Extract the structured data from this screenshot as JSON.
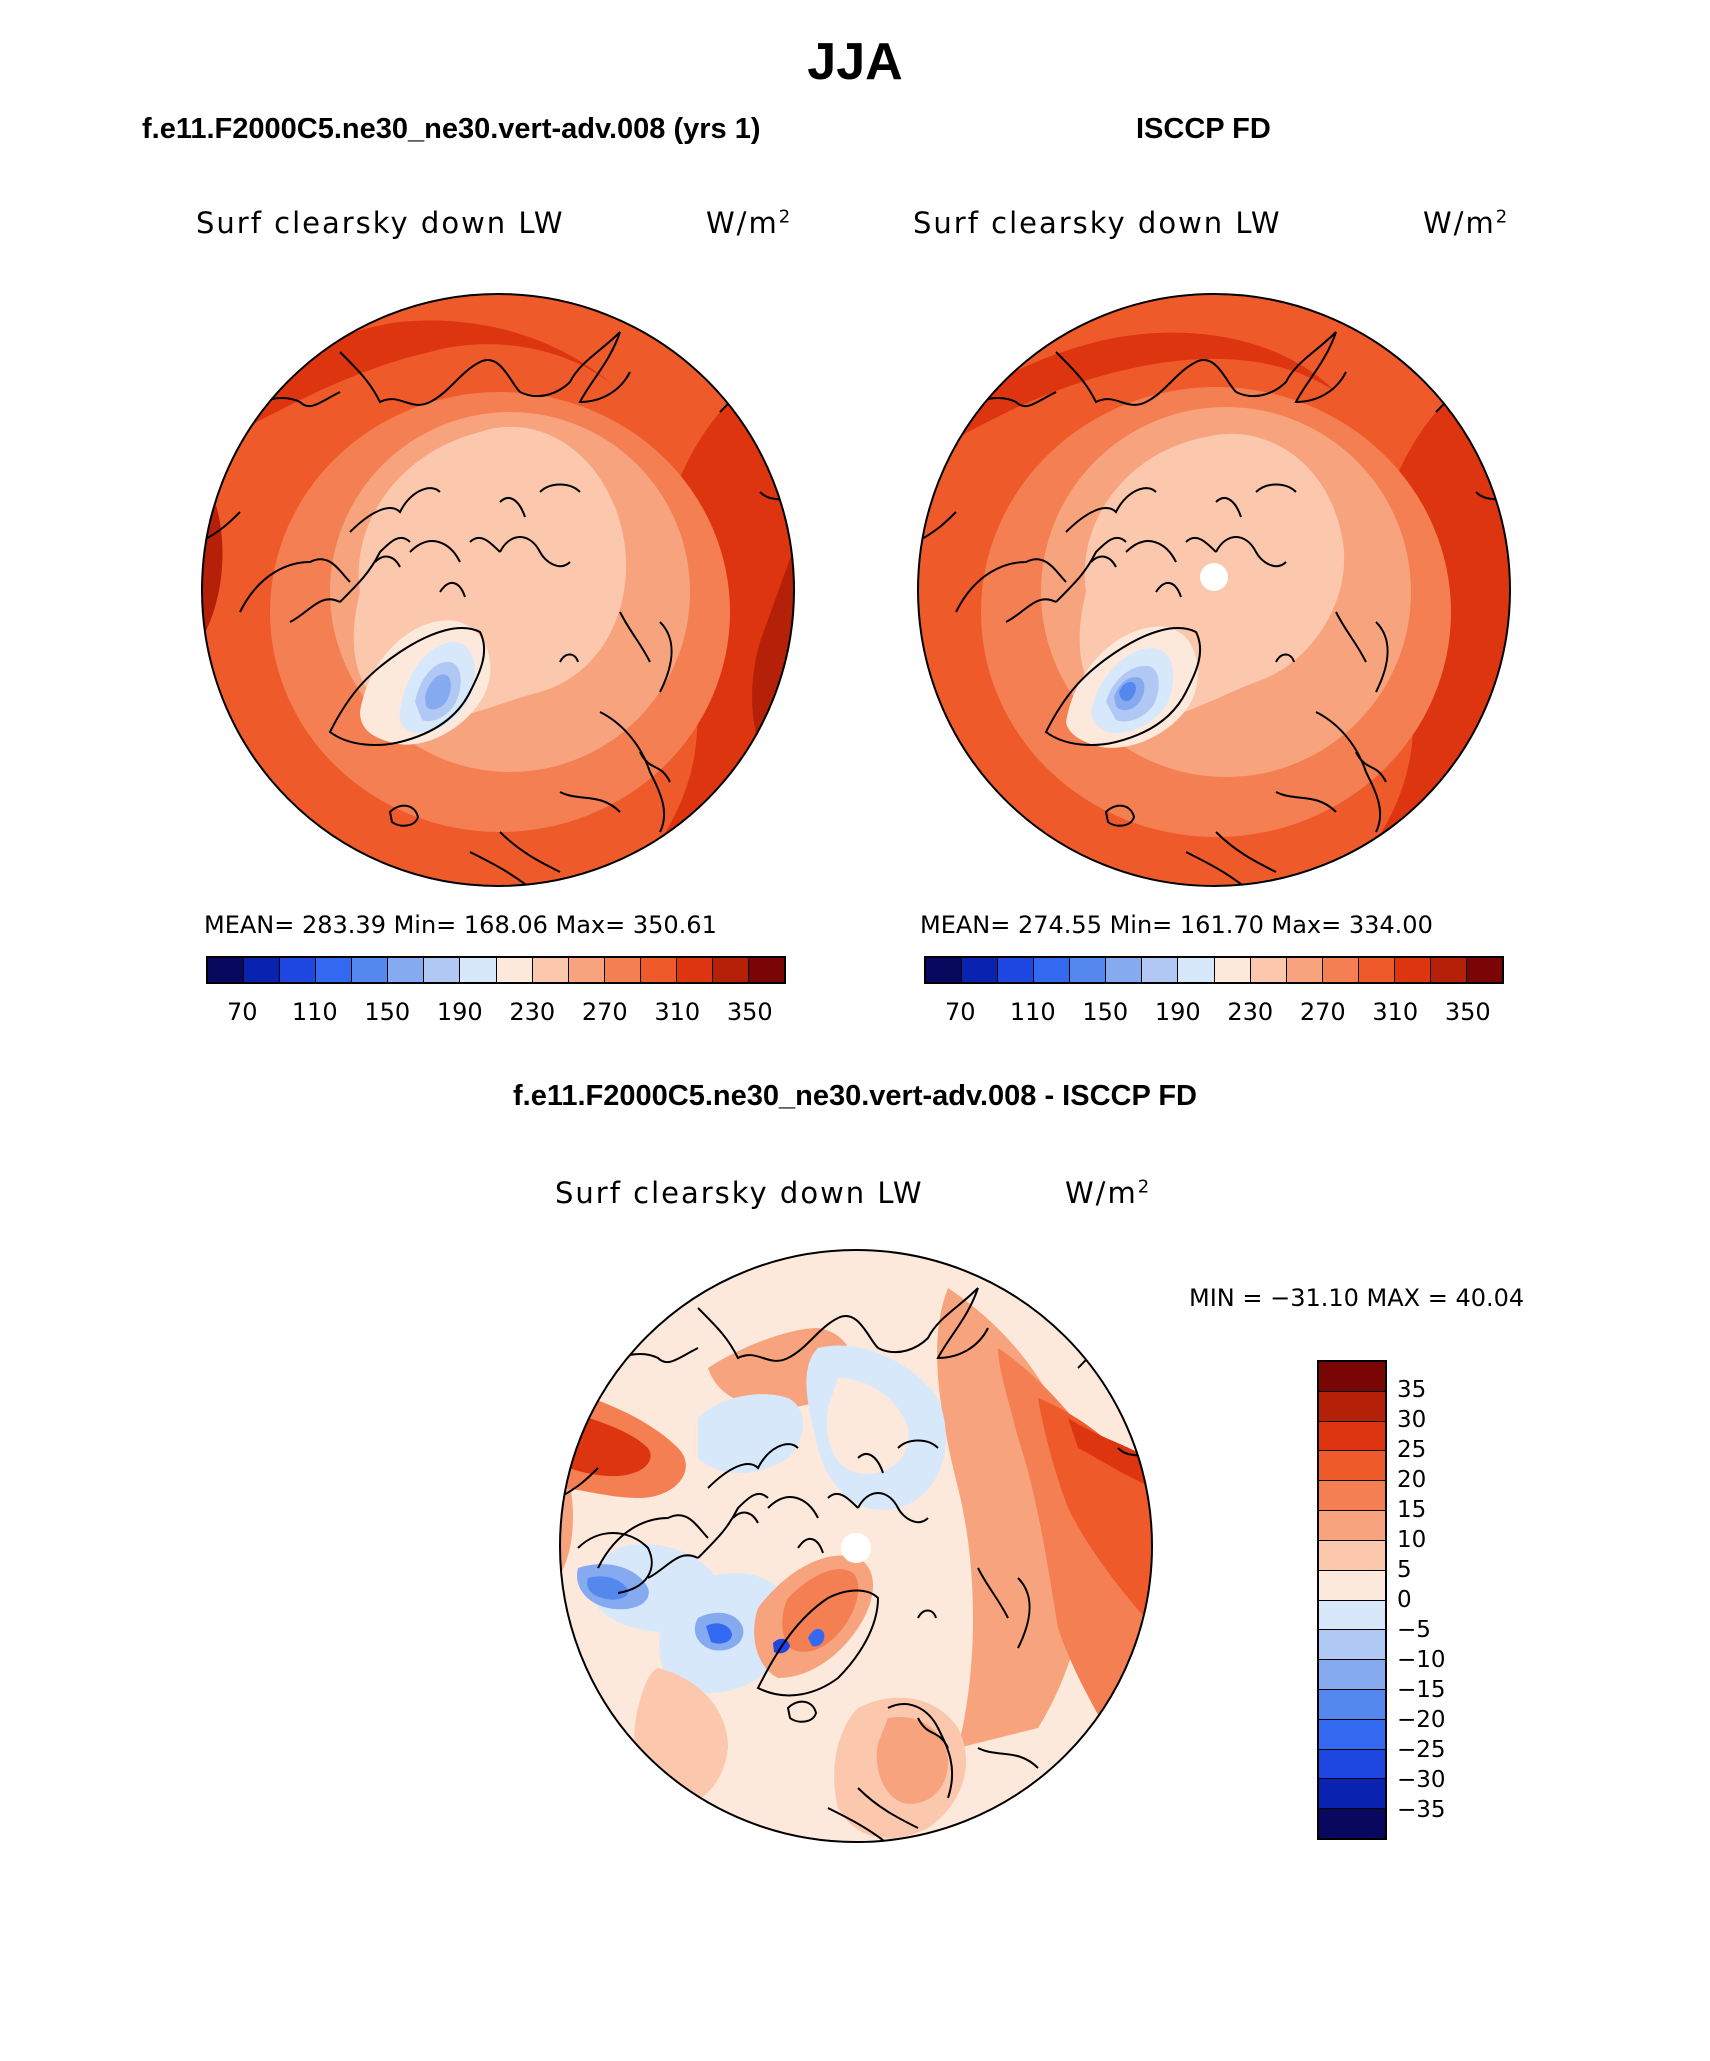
{
  "figure": {
    "title": "JJA",
    "diff_title": "f.e11.F2000C5.ne30_ne30.vert-adv.008 - ISCCP FD"
  },
  "colors": {
    "abs_scale": [
      "#08085e",
      "#0a22b0",
      "#1e46e0",
      "#3368f0",
      "#5588ee",
      "#86aaf0",
      "#b1c8f5",
      "#d8e8fb",
      "#fde9dc",
      "#fbc8ae",
      "#f7a47e",
      "#f47f52",
      "#ef5a2b",
      "#dd3510",
      "#b52008",
      "#7a0505"
    ],
    "diff_scale": [
      "#7a0505",
      "#b52008",
      "#dd3510",
      "#ef5a2b",
      "#f47f52",
      "#f7a47e",
      "#fbc8ae",
      "#fde9dc",
      "#d8e8fb",
      "#b1c8f5",
      "#86aaf0",
      "#5588ee",
      "#3368f0",
      "#1e46e0",
      "#0a22b0",
      "#08085e"
    ]
  },
  "chart_data": [
    {
      "type": "heatmap",
      "projection": "polar-stereographic-north",
      "title": "f.e11.F2000C5.ne30_ne30.vert-adv.008 (yrs 1)",
      "variable": "Surf clearsky down LW",
      "units": "W/m",
      "units_sup": "2",
      "stats_text": "MEAN= 283.39   Min= 168.06   Max= 350.61",
      "stats": {
        "mean": 283.39,
        "min": 168.06,
        "max": 350.61
      },
      "colorbar_levels": [
        70,
        90,
        110,
        130,
        150,
        170,
        190,
        210,
        230,
        250,
        270,
        290,
        310,
        330,
        350
      ],
      "colorbar_ticks": [
        "70",
        "110",
        "150",
        "190",
        "230",
        "270",
        "310",
        "350"
      ]
    },
    {
      "type": "heatmap",
      "projection": "polar-stereographic-north",
      "title": "ISCCP FD",
      "variable": "Surf clearsky down LW",
      "units": "W/m",
      "units_sup": "2",
      "stats_text": "MEAN= 274.55   Min= 161.70   Max= 334.00",
      "stats": {
        "mean": 274.55,
        "min": 161.7,
        "max": 334.0
      },
      "colorbar_levels": [
        70,
        90,
        110,
        130,
        150,
        170,
        190,
        210,
        230,
        250,
        270,
        290,
        310,
        330,
        350
      ],
      "colorbar_ticks": [
        "70",
        "110",
        "150",
        "190",
        "230",
        "270",
        "310",
        "350"
      ]
    },
    {
      "type": "heatmap",
      "projection": "polar-stereographic-north",
      "title": "f.e11.F2000C5.ne30_ne30.vert-adv.008 - ISCCP FD",
      "variable": "Surf clearsky down LW",
      "units": "W/m",
      "units_sup": "2",
      "stats_text": "MIN = −31.10  MAX =   40.04",
      "stats": {
        "min": -31.1,
        "max": 40.04
      },
      "colorbar_levels": [
        35,
        30,
        25,
        20,
        15,
        10,
        5,
        0,
        -5,
        -10,
        -15,
        -20,
        -25,
        -30,
        -35
      ],
      "colorbar_ticks": [
        "35",
        "30",
        "25",
        "20",
        "15",
        "10",
        "5",
        "0",
        "−5",
        "−10",
        "−15",
        "−20",
        "−25",
        "−30",
        "−35"
      ]
    }
  ]
}
